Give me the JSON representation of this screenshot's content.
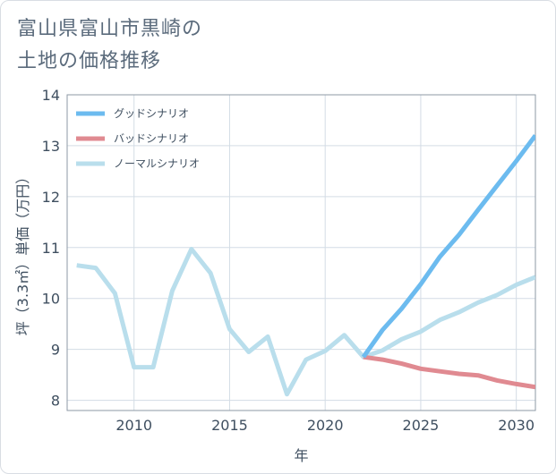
{
  "chart_data": {
    "type": "line",
    "title_lines": [
      "富山県富山市黒崎の",
      "土地の価格推移"
    ],
    "xlabel": "年",
    "ylabel": "坪（3.3㎡）単価（万円）",
    "xlim": [
      2006.5,
      2031
    ],
    "ylim": [
      7.8,
      14
    ],
    "xticks": [
      2010,
      2015,
      2020,
      2025,
      2030
    ],
    "yticks": [
      8,
      9,
      10,
      11,
      12,
      13,
      14
    ],
    "grid": true,
    "legend_position": "top-left",
    "series": [
      {
        "name": "グッドシナリオ",
        "color": "#6cbbef",
        "x": [
          2022,
          2023,
          2024,
          2025,
          2026,
          2027,
          2028,
          2029,
          2030,
          2031
        ],
        "values": [
          8.85,
          9.38,
          9.8,
          10.28,
          10.82,
          11.25,
          11.74,
          12.22,
          12.7,
          13.2
        ]
      },
      {
        "name": "バッドシナリオ",
        "color": "#e08a91",
        "x": [
          2022,
          2023,
          2024,
          2025,
          2026,
          2027,
          2028,
          2029,
          2030,
          2031
        ],
        "values": [
          8.85,
          8.8,
          8.72,
          8.62,
          8.57,
          8.52,
          8.49,
          8.39,
          8.32,
          8.26
        ]
      },
      {
        "name": "ノーマルシナリオ",
        "color": "#b9deec",
        "x": [
          2007,
          2008,
          2009,
          2010,
          2011,
          2012,
          2013,
          2014,
          2015,
          2016,
          2017,
          2018,
          2019,
          2020,
          2021,
          2022,
          2023,
          2024,
          2025,
          2026,
          2027,
          2028,
          2029,
          2030,
          2031
        ],
        "values": [
          10.65,
          10.6,
          10.1,
          8.65,
          8.65,
          10.15,
          10.97,
          10.5,
          9.4,
          8.95,
          9.25,
          8.12,
          8.8,
          8.97,
          9.28,
          8.85,
          8.98,
          9.2,
          9.35,
          9.58,
          9.73,
          9.92,
          10.07,
          10.27,
          10.42
        ]
      }
    ]
  }
}
